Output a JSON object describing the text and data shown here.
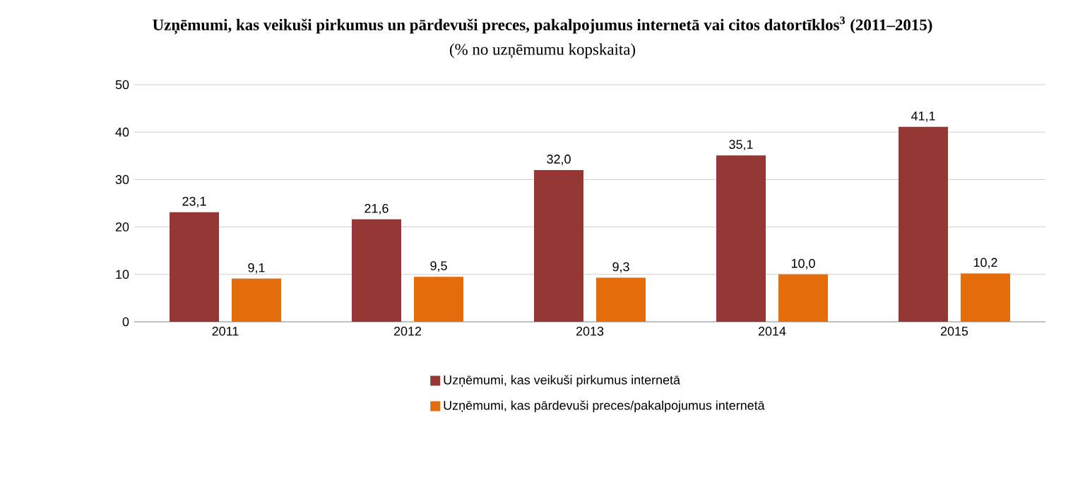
{
  "chart_data": {
    "type": "bar",
    "title": "Uzņēmumi, kas veikuši pirkumus un pārdevuši preces, pakalpojumus internetā vai citos datortīklos$^{3}$ (2011–2015)",
    "subtitle": "(% no uzņēmumu kopskaita)",
    "categories": [
      "2011",
      "2012",
      "2013",
      "2014",
      "2015"
    ],
    "series": [
      {
        "name": "Uzņēmumi, kas veikuši pirkumus internetā",
        "color": "#953735",
        "values": [
          23.1,
          21.6,
          32.0,
          35.1,
          41.1
        ],
        "value_labels": [
          "23,1",
          "21,6",
          "32,0",
          "35,1",
          "41,1"
        ]
      },
      {
        "name": "Uzņēmumi, kas pārdevuši preces/pakalpojumus internetā",
        "color": "#e46c0a",
        "values": [
          9.1,
          9.5,
          9.3,
          10.0,
          10.2
        ],
        "value_labels": [
          "9,1",
          "9,5",
          "9,3",
          "10,0",
          "10,2"
        ]
      }
    ],
    "ylim": [
      0,
      50
    ],
    "yticks": [
      0,
      10,
      20,
      30,
      40,
      50
    ],
    "grid": "y",
    "legend": "bottom"
  }
}
